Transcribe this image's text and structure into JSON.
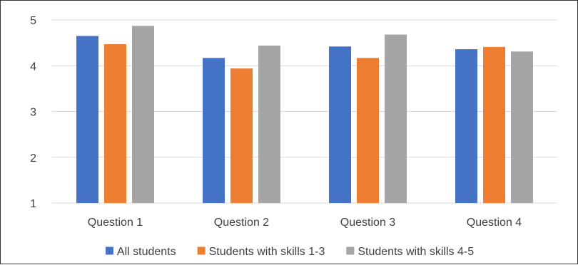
{
  "chart_data": {
    "type": "bar",
    "categories": [
      "Question 1",
      "Question 2",
      "Question 3",
      "Question 4"
    ],
    "series": [
      {
        "name": "All students",
        "color": "#4472C4",
        "values": [
          4.65,
          4.17,
          4.42,
          4.36
        ]
      },
      {
        "name": "Students with skills 1-3",
        "color": "#ED7D31",
        "values": [
          4.47,
          3.94,
          4.17,
          4.41
        ]
      },
      {
        "name": "Students with skills 4-5",
        "color": "#A5A5A5",
        "values": [
          4.87,
          4.44,
          4.68,
          4.31
        ]
      }
    ],
    "ylim": [
      1,
      5
    ],
    "yticks": [
      "1",
      "2",
      "3",
      "4",
      "5"
    ],
    "grid": true,
    "legend_position": "bottom",
    "title": "",
    "xlabel": "",
    "ylabel": ""
  },
  "colors": {
    "gridline": "#D9D9D9",
    "text": "#404040",
    "frame": "#3a3a3a"
  }
}
